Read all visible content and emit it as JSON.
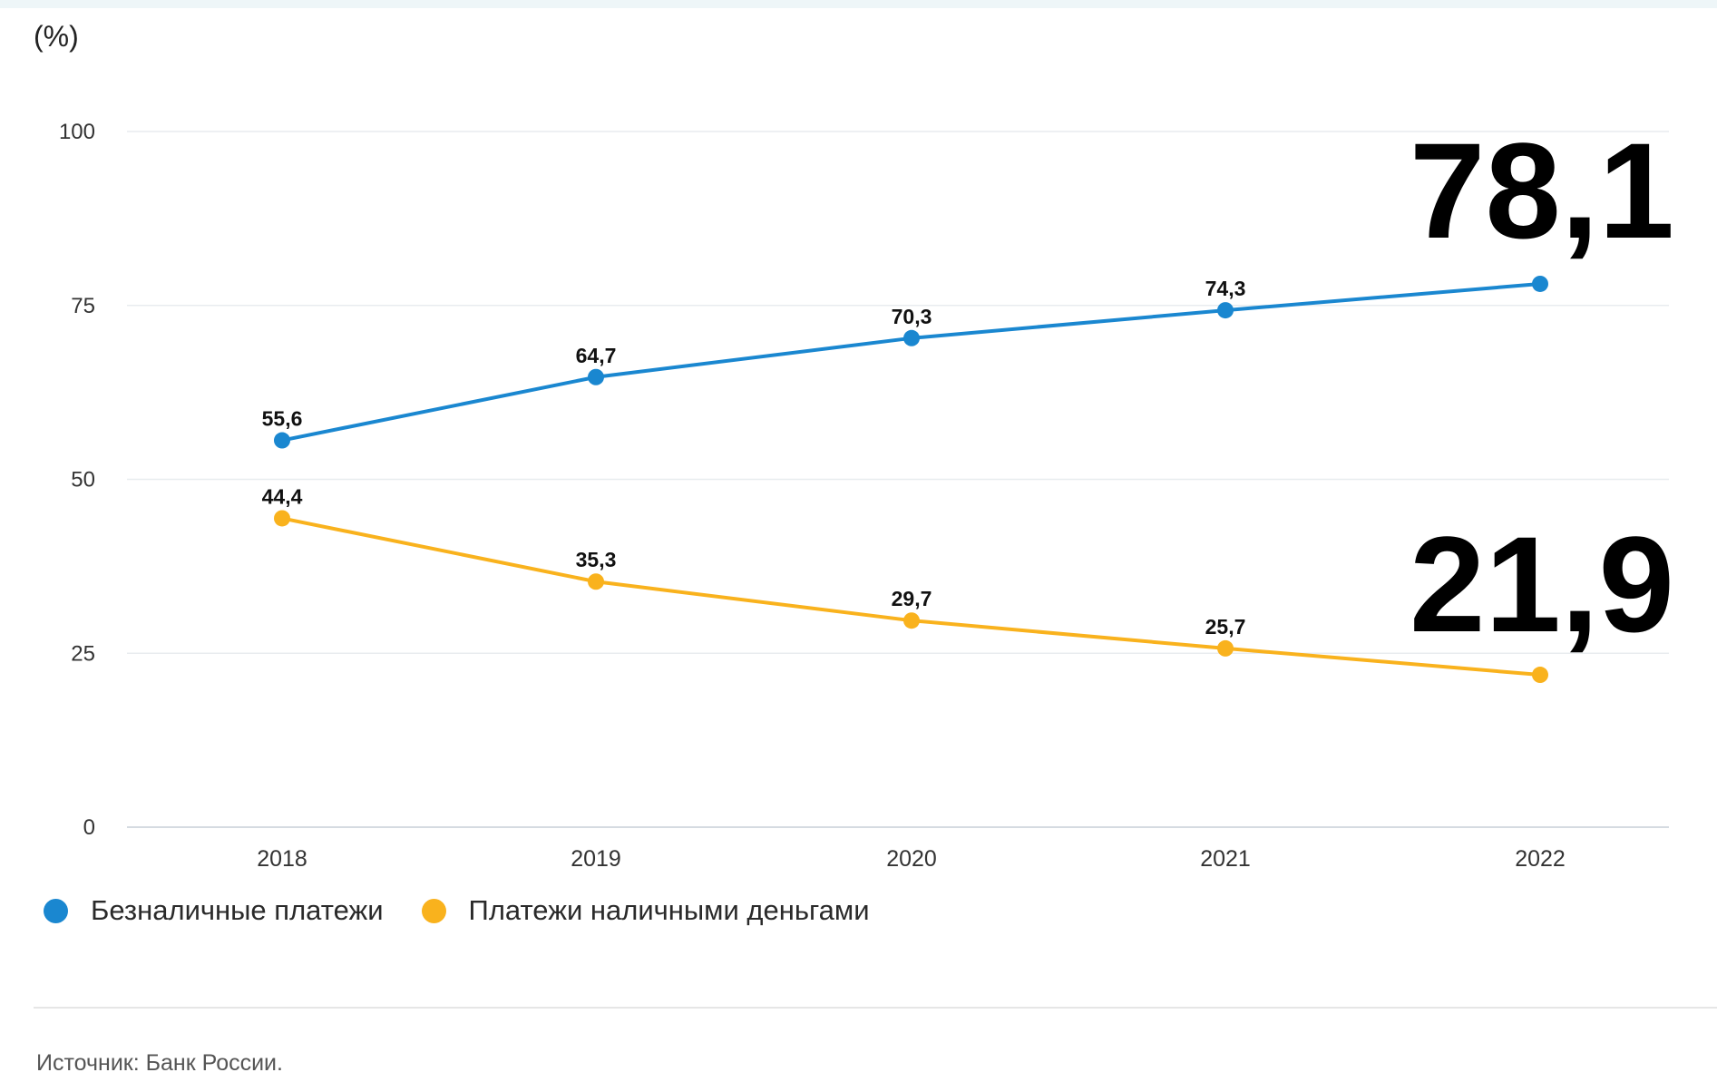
{
  "chart_data": {
    "type": "line",
    "unit_label": "(%)",
    "x": [
      "2018",
      "2019",
      "2020",
      "2021",
      "2022"
    ],
    "ylim": [
      0,
      100
    ],
    "yticks": [
      0,
      25,
      50,
      75,
      100
    ],
    "grid": true,
    "legend_position": "bottom-left",
    "series": [
      {
        "name": "Безналичные платежи",
        "color": "#1a87d0",
        "values": [
          55.6,
          64.7,
          70.3,
          74.3,
          78.1
        ],
        "labels": [
          "55,6",
          "64,7",
          "70,3",
          "74,3",
          ""
        ]
      },
      {
        "name": "Платежи наличными деньгами",
        "color": "#f9b21d",
        "values": [
          44.4,
          35.3,
          29.7,
          25.7,
          21.9
        ],
        "labels": [
          "44,4",
          "35,3",
          "29,7",
          "25,7",
          ""
        ]
      }
    ],
    "callouts": [
      {
        "series": 0,
        "text": "78,1"
      },
      {
        "series": 1,
        "text": "21,9"
      }
    ],
    "ytick_labels": [
      "0",
      "25",
      "50",
      "75",
      "100"
    ]
  },
  "source": "Источник: Банк России."
}
